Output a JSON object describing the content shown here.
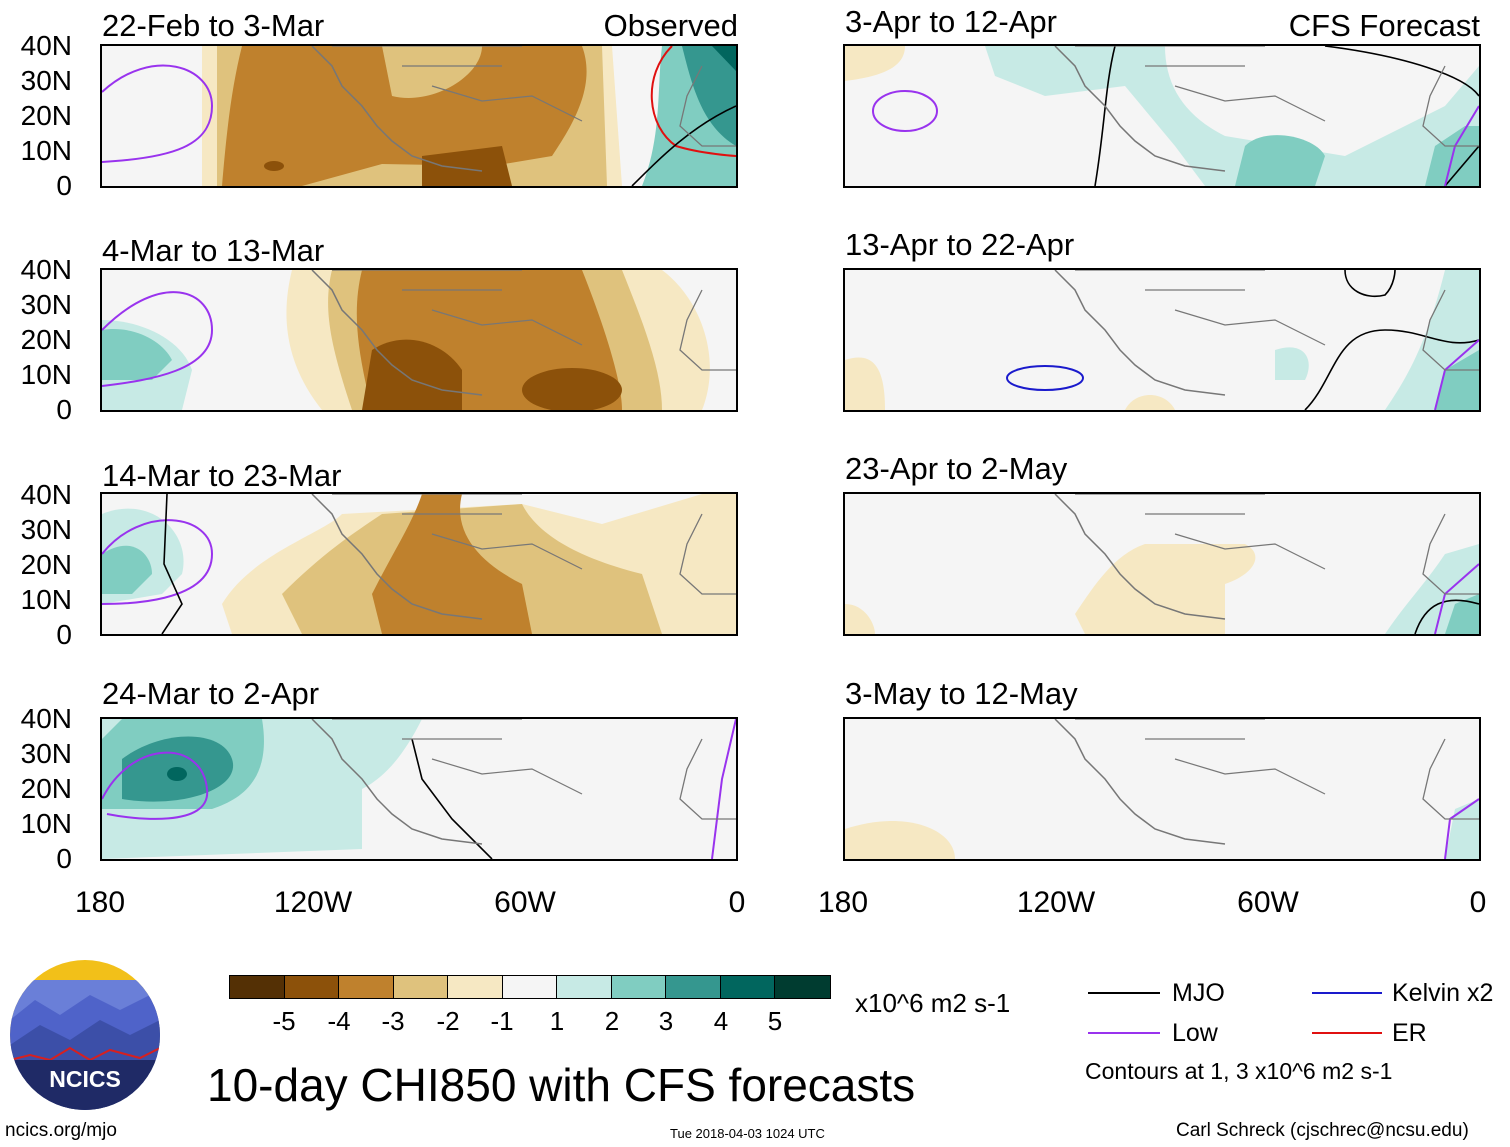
{
  "main_title": "10-day CHI850 with CFS forecasts",
  "observed_label": "Observed",
  "forecast_label": "CFS Forecast",
  "units": "x10^6 m2 s-1",
  "lat_labels": [
    "40N",
    "30N",
    "20N",
    "10N",
    "0"
  ],
  "lon_labels": [
    "180",
    "120W",
    "60W",
    "0"
  ],
  "panels_left": [
    {
      "title": "22-Feb to 3-Mar"
    },
    {
      "title": "4-Mar to 13-Mar"
    },
    {
      "title": "14-Mar to 23-Mar"
    },
    {
      "title": "24-Mar to 2-Apr"
    }
  ],
  "panels_right": [
    {
      "title": "3-Apr to 12-Apr"
    },
    {
      "title": "13-Apr to 22-Apr"
    },
    {
      "title": "23-Apr to 2-May"
    },
    {
      "title": "3-May to 12-May"
    }
  ],
  "colorbar": {
    "colors": [
      "#543005",
      "#8c510a",
      "#bf812d",
      "#dfc27d",
      "#f6e8c3",
      "#f5f5f5",
      "#c7eae5",
      "#80cdc1",
      "#35978f",
      "#01665e",
      "#003c30"
    ],
    "ticks": [
      "-5",
      "-4",
      "-3",
      "-2",
      "-1",
      "1",
      "2",
      "3",
      "4",
      "5"
    ]
  },
  "legend": {
    "items": [
      {
        "label": "MJO",
        "color": "#000000"
      },
      {
        "label": "Kelvin x2",
        "color": "#1a1acc"
      },
      {
        "label": "Low",
        "color": "#9933ee"
      },
      {
        "label": "ER",
        "color": "#e01010"
      }
    ],
    "contours_note": "Contours at 1, 3 x10^6 m2 s-1"
  },
  "logo_text": "NCICS",
  "url": "ncics.org/mjo",
  "timestamp": "Tue 2018-04-03 1024 UTC",
  "author": "Carl Schreck (cjschrec@ncsu.edu)"
}
